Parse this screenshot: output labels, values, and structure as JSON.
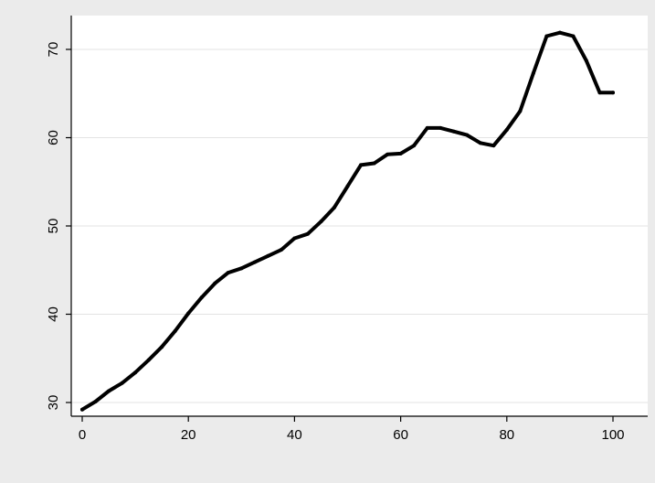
{
  "chart_data": {
    "type": "line",
    "title": "",
    "xlabel": "",
    "ylabel": "",
    "xlim": [
      0,
      100
    ],
    "ylim": [
      29,
      73
    ],
    "xticks": [
      0,
      20,
      40,
      60,
      80,
      100
    ],
    "yticks": [
      30,
      40,
      50,
      60,
      70
    ],
    "xtick_labels": [
      "0",
      "20",
      "40",
      "60",
      "80",
      "100"
    ],
    "ytick_labels": [
      "30",
      "40",
      "50",
      "60",
      "70"
    ],
    "grid": "horizontal",
    "legend": "none",
    "colors": {
      "background": "#ebebeb",
      "plot_area": "#ffffff",
      "grid": "#e3e3e3",
      "line": "#000000"
    },
    "series": [
      {
        "x": [
          0,
          2.5,
          5,
          7.5,
          10,
          12.5,
          15,
          17.5,
          20,
          22.5,
          25,
          27.5,
          30,
          32.5,
          35,
          37.5,
          40,
          42.5,
          45,
          47.5,
          50,
          52.5,
          55,
          57.5,
          60,
          62.5,
          65,
          67.5,
          70,
          72.5,
          75,
          77.5,
          80,
          82.5,
          85,
          87.5,
          90,
          92.5,
          95,
          97.5,
          100
        ],
        "values": [
          29.2,
          30.1,
          31.3,
          32.2,
          33.4,
          34.8,
          36.3,
          38.1,
          40.1,
          41.9,
          43.5,
          44.7,
          45.2,
          45.9,
          46.6,
          47.3,
          48.6,
          49.1,
          50.5,
          52.1,
          54.5,
          56.9,
          57.1,
          58.1,
          58.2,
          59.1,
          61.1,
          61.1,
          60.7,
          60.3,
          59.4,
          59.1,
          60.9,
          63.0,
          67.3,
          71.5,
          71.9,
          71.5,
          68.7,
          65.1,
          65.1
        ]
      }
    ]
  }
}
